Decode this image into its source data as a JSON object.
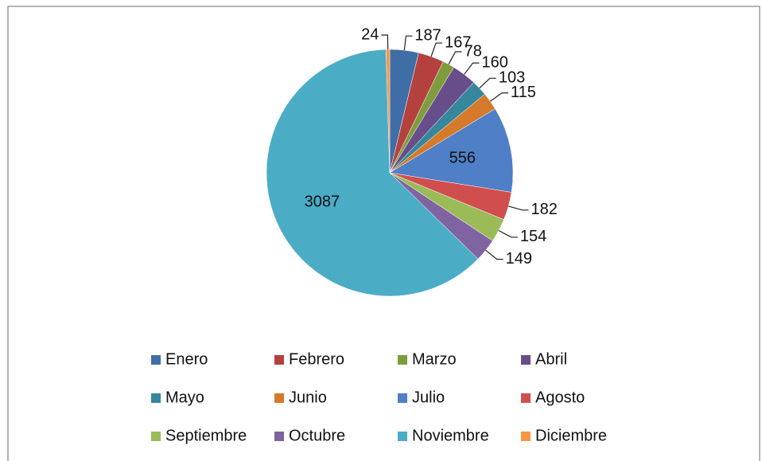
{
  "chart_data": {
    "type": "pie",
    "categories": [
      "Enero",
      "Febrero",
      "Marzo",
      "Abril",
      "Mayo",
      "Junio",
      "Julio",
      "Agosto",
      "Septiembre",
      "Octubre",
      "Noviembre",
      "Diciembre"
    ],
    "values": [
      187,
      167,
      78,
      160,
      103,
      115,
      556,
      182,
      154,
      149,
      3087,
      24
    ],
    "colors": [
      "#3f6ea7",
      "#b5413f",
      "#7f9c3d",
      "#674e8a",
      "#36879e",
      "#d57a2b",
      "#4f7fc6",
      "#d04f4e",
      "#9bbb59",
      "#8064a2",
      "#4bacc6",
      "#f79646"
    ],
    "legend": "bottom"
  }
}
